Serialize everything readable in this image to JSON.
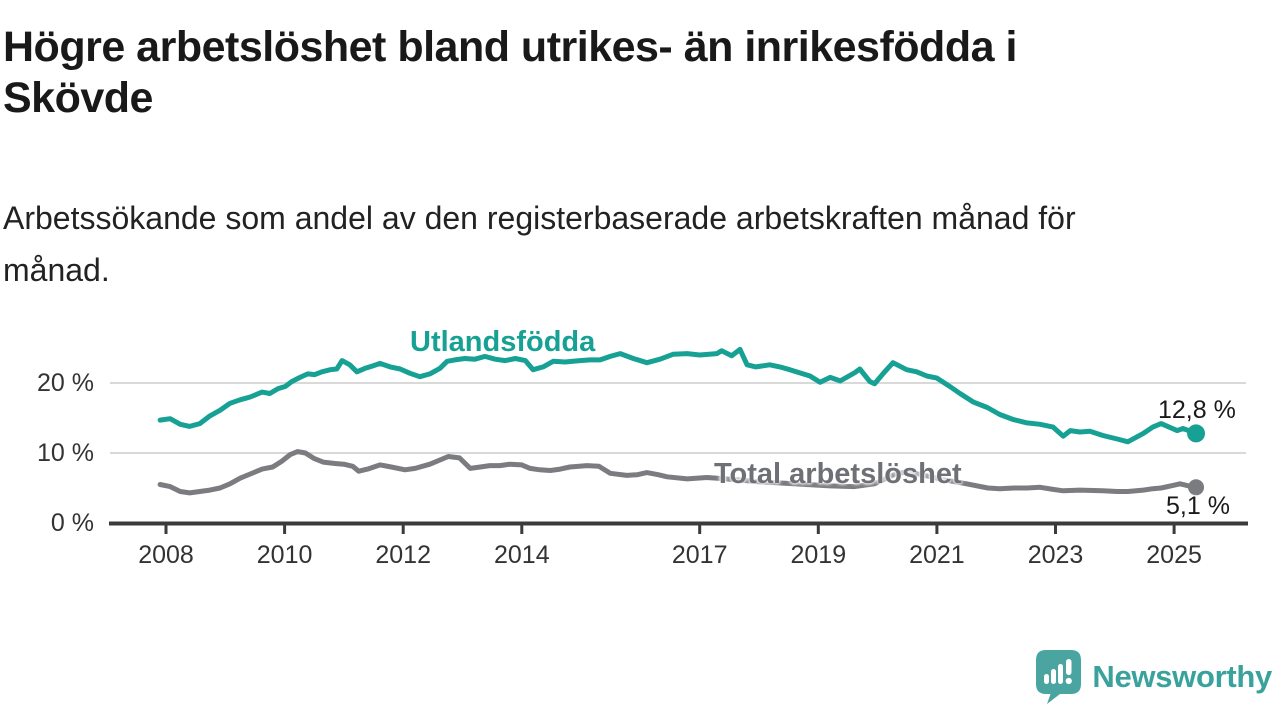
{
  "title": "Högre arbetslöshet bland utrikes- än inrikesfödda i Skövde",
  "title_lines": [
    "Högre arbetslöshet bland utrikes- än inrikesfödda i",
    "Skövde"
  ],
  "subtitle": "Arbetssökande som andel av den registerbaserade arbetskraften månad för månad.",
  "subtitle_lines": [
    "Arbetssökande som andel av den registerbaserade arbetskraften månad för",
    "månad."
  ],
  "footer": {
    "brand": "Newsworthy",
    "logo_icon": "speech-bubble-bar-chart-icon"
  },
  "colors": {
    "foreign_born_line": "#16a194",
    "total_line": "#7b7c80",
    "total_label": "#6f7075",
    "axis": "#3b3b3b",
    "gridline": "#d9d9d9",
    "tick_text": "#333333",
    "value_text": "#1a1a1a",
    "brand_teal": "#3aa29c",
    "background": "#ffffff"
  },
  "chart_data": {
    "type": "line",
    "title": "Högre arbetslöshet bland utrikes- än inrikesfödda i Skövde",
    "subtitle": "Arbetssökande som andel av den registerbaserade arbetskraften månad för månad.",
    "unit": "%",
    "grid": "horizontal-only",
    "legend_position": "inline-labels",
    "x_axis": {
      "ticks": [
        2008,
        2010,
        2012,
        2014,
        2017,
        2019,
        2021,
        2023,
        2025
      ],
      "range": [
        2007.9,
        2025.4
      ]
    },
    "y_axis": {
      "ticks": [
        {
          "value": 0,
          "label": "0 %"
        },
        {
          "value": 10,
          "label": "10 %"
        },
        {
          "value": 20,
          "label": "20 %"
        }
      ],
      "range": [
        0,
        26
      ]
    },
    "series": [
      {
        "name": "Utlandsfödda",
        "color": "#16a194",
        "end_label": "12,8 %",
        "end_value": 12.8,
        "points": [
          [
            2007.9,
            14.7
          ],
          [
            2008.07,
            14.9
          ],
          [
            2008.24,
            14.1
          ],
          [
            2008.4,
            13.8
          ],
          [
            2008.57,
            14.2
          ],
          [
            2008.74,
            15.3
          ],
          [
            2008.91,
            16.1
          ],
          [
            2009.08,
            17.1
          ],
          [
            2009.25,
            17.6
          ],
          [
            2009.42,
            18.0
          ],
          [
            2009.62,
            18.7
          ],
          [
            2009.75,
            18.5
          ],
          [
            2009.89,
            19.2
          ],
          [
            2010.01,
            19.5
          ],
          [
            2010.12,
            20.2
          ],
          [
            2010.26,
            20.8
          ],
          [
            2010.39,
            21.3
          ],
          [
            2010.51,
            21.2
          ],
          [
            2010.63,
            21.6
          ],
          [
            2010.77,
            21.9
          ],
          [
            2010.88,
            22.0
          ],
          [
            2010.97,
            23.2
          ],
          [
            2011.1,
            22.6
          ],
          [
            2011.22,
            21.6
          ],
          [
            2011.36,
            22.1
          ],
          [
            2011.47,
            22.4
          ],
          [
            2011.61,
            22.8
          ],
          [
            2011.78,
            22.3
          ],
          [
            2011.95,
            22.0
          ],
          [
            2012.11,
            21.4
          ],
          [
            2012.28,
            20.9
          ],
          [
            2012.45,
            21.3
          ],
          [
            2012.62,
            22.1
          ],
          [
            2012.74,
            23.1
          ],
          [
            2012.87,
            23.3
          ],
          [
            2013.04,
            23.5
          ],
          [
            2013.21,
            23.4
          ],
          [
            2013.38,
            23.8
          ],
          [
            2013.55,
            23.4
          ],
          [
            2013.72,
            23.2
          ],
          [
            2013.89,
            23.5
          ],
          [
            2014.06,
            23.2
          ],
          [
            2014.19,
            21.9
          ],
          [
            2014.36,
            22.3
          ],
          [
            2014.53,
            23.1
          ],
          [
            2014.73,
            23.0
          ],
          [
            2014.98,
            23.2
          ],
          [
            2015.15,
            23.3
          ],
          [
            2015.32,
            23.3
          ],
          [
            2015.49,
            23.8
          ],
          [
            2015.66,
            24.2
          ],
          [
            2015.88,
            23.5
          ],
          [
            2016.11,
            22.9
          ],
          [
            2016.33,
            23.4
          ],
          [
            2016.55,
            24.1
          ],
          [
            2016.79,
            24.2
          ],
          [
            2017.0,
            24.0
          ],
          [
            2017.29,
            24.2
          ],
          [
            2017.37,
            24.6
          ],
          [
            2017.54,
            23.9
          ],
          [
            2017.68,
            24.8
          ],
          [
            2017.8,
            22.6
          ],
          [
            2017.95,
            22.3
          ],
          [
            2018.18,
            22.6
          ],
          [
            2018.35,
            22.3
          ],
          [
            2018.52,
            21.9
          ],
          [
            2018.86,
            21.0
          ],
          [
            2019.03,
            20.1
          ],
          [
            2019.2,
            20.8
          ],
          [
            2019.37,
            20.3
          ],
          [
            2019.62,
            21.5
          ],
          [
            2019.7,
            22.0
          ],
          [
            2019.87,
            20.2
          ],
          [
            2019.95,
            19.9
          ],
          [
            2020.12,
            21.6
          ],
          [
            2020.26,
            22.9
          ],
          [
            2020.49,
            21.9
          ],
          [
            2020.66,
            21.6
          ],
          [
            2020.83,
            21.0
          ],
          [
            2021.0,
            20.7
          ],
          [
            2021.22,
            19.5
          ],
          [
            2021.39,
            18.5
          ],
          [
            2021.61,
            17.3
          ],
          [
            2021.85,
            16.5
          ],
          [
            2022.06,
            15.5
          ],
          [
            2022.28,
            14.8
          ],
          [
            2022.52,
            14.3
          ],
          [
            2022.74,
            14.1
          ],
          [
            2022.96,
            13.7
          ],
          [
            2023.13,
            12.4
          ],
          [
            2023.25,
            13.2
          ],
          [
            2023.41,
            13.0
          ],
          [
            2023.58,
            13.1
          ],
          [
            2023.8,
            12.5
          ],
          [
            2024.04,
            12.0
          ],
          [
            2024.22,
            11.6
          ],
          [
            2024.48,
            12.8
          ],
          [
            2024.64,
            13.7
          ],
          [
            2024.78,
            14.2
          ],
          [
            2025.05,
            13.2
          ],
          [
            2025.15,
            13.5
          ],
          [
            2025.37,
            12.8
          ]
        ]
      },
      {
        "name": "Total arbetslöshet",
        "color": "#7b7c80",
        "end_label": "5,1 %",
        "end_value": 5.1,
        "points": [
          [
            2007.9,
            5.5
          ],
          [
            2008.07,
            5.2
          ],
          [
            2008.24,
            4.5
          ],
          [
            2008.4,
            4.3
          ],
          [
            2008.57,
            4.5
          ],
          [
            2008.74,
            4.7
          ],
          [
            2008.91,
            5.0
          ],
          [
            2009.08,
            5.6
          ],
          [
            2009.25,
            6.4
          ],
          [
            2009.42,
            7.0
          ],
          [
            2009.62,
            7.7
          ],
          [
            2009.8,
            8.0
          ],
          [
            2009.95,
            8.8
          ],
          [
            2010.1,
            9.8
          ],
          [
            2010.22,
            10.2
          ],
          [
            2010.35,
            10.0
          ],
          [
            2010.5,
            9.2
          ],
          [
            2010.65,
            8.7
          ],
          [
            2010.85,
            8.5
          ],
          [
            2011.0,
            8.4
          ],
          [
            2011.15,
            8.1
          ],
          [
            2011.25,
            7.4
          ],
          [
            2011.4,
            7.7
          ],
          [
            2011.61,
            8.3
          ],
          [
            2011.8,
            8.0
          ],
          [
            2012.03,
            7.6
          ],
          [
            2012.2,
            7.8
          ],
          [
            2012.45,
            8.4
          ],
          [
            2012.76,
            9.5
          ],
          [
            2012.95,
            9.3
          ],
          [
            2013.13,
            7.8
          ],
          [
            2013.3,
            8.0
          ],
          [
            2013.46,
            8.2
          ],
          [
            2013.63,
            8.2
          ],
          [
            2013.8,
            8.4
          ],
          [
            2014.0,
            8.3
          ],
          [
            2014.14,
            7.8
          ],
          [
            2014.3,
            7.6
          ],
          [
            2014.48,
            7.5
          ],
          [
            2014.65,
            7.7
          ],
          [
            2014.81,
            8.0
          ],
          [
            2015.1,
            8.2
          ],
          [
            2015.3,
            8.1
          ],
          [
            2015.49,
            7.1
          ],
          [
            2015.77,
            6.8
          ],
          [
            2015.95,
            6.9
          ],
          [
            2016.11,
            7.2
          ],
          [
            2016.3,
            6.9
          ],
          [
            2016.45,
            6.6
          ],
          [
            2016.79,
            6.3
          ],
          [
            2017.12,
            6.5
          ],
          [
            2017.3,
            6.4
          ],
          [
            2017.6,
            6.2
          ],
          [
            2018.0,
            5.9
          ],
          [
            2018.4,
            5.7
          ],
          [
            2018.8,
            5.5
          ],
          [
            2019.2,
            5.3
          ],
          [
            2019.6,
            5.2
          ],
          [
            2019.95,
            5.6
          ],
          [
            2020.3,
            7.0
          ],
          [
            2020.5,
            7.3
          ],
          [
            2020.8,
            6.8
          ],
          [
            2021.1,
            6.2
          ],
          [
            2021.5,
            5.6
          ],
          [
            2021.86,
            5.0
          ],
          [
            2022.06,
            4.9
          ],
          [
            2022.3,
            5.0
          ],
          [
            2022.52,
            5.0
          ],
          [
            2022.74,
            5.1
          ],
          [
            2022.96,
            4.8
          ],
          [
            2023.13,
            4.6
          ],
          [
            2023.41,
            4.7
          ],
          [
            2023.8,
            4.6
          ],
          [
            2024.04,
            4.5
          ],
          [
            2024.22,
            4.5
          ],
          [
            2024.48,
            4.7
          ],
          [
            2024.64,
            4.9
          ],
          [
            2024.78,
            5.0
          ],
          [
            2025.0,
            5.4
          ],
          [
            2025.1,
            5.6
          ],
          [
            2025.25,
            5.3
          ],
          [
            2025.37,
            5.1
          ]
        ]
      }
    ]
  }
}
